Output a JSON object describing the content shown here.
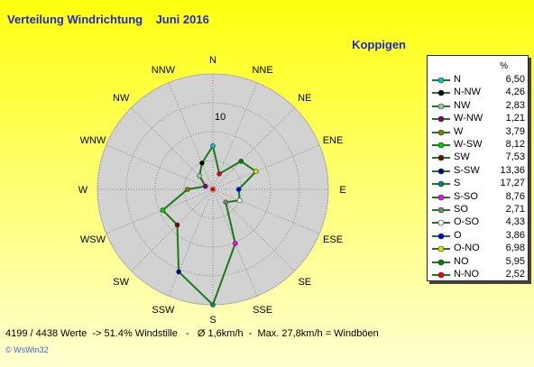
{
  "title": "Verteilung Windrichtung",
  "period": "Juni 2016",
  "station": "Koppigen",
  "legend_header": "%",
  "footer": "4199 / 4438 Werte  -> 51.4% Windstille   -   Ø 1,6km/h  -  Max. 27,8km/h = Windböen",
  "logo": "© WsWin32",
  "chart_data": {
    "type": "radar",
    "axis_labels": [
      "N",
      "NNE",
      "NE",
      "ENE",
      "E",
      "ESE",
      "SE",
      "SSE",
      "S",
      "SSW",
      "SW",
      "WSW",
      "W",
      "WNW",
      "NW",
      "NNW"
    ],
    "r_ticks": [
      10
    ],
    "r_max": 17.27,
    "grid": true,
    "legend_position": "right",
    "line_color": "#1a7a1a",
    "series": [
      {
        "label": "N",
        "value": "6,50",
        "num": 6.5,
        "color": "#00c8c8"
      },
      {
        "label": "N-NW",
        "value": "4,26",
        "num": 4.26,
        "color": "#000000"
      },
      {
        "label": "NW",
        "value": "2,83",
        "num": 2.83,
        "color": "#9ccc9c"
      },
      {
        "label": "W-NW",
        "value": "1,21",
        "num": 1.21,
        "color": "#800080"
      },
      {
        "label": "W",
        "value": "3,79",
        "num": 3.79,
        "color": "#808000"
      },
      {
        "label": "W-SW",
        "value": "8,12",
        "num": 8.12,
        "color": "#00d000"
      },
      {
        "label": "SW",
        "value": "7,53",
        "num": 7.53,
        "color": "#800000"
      },
      {
        "label": "S-SW",
        "value": "13,36",
        "num": 13.36,
        "color": "#000080"
      },
      {
        "label": "S",
        "value": "17,27",
        "num": 17.27,
        "color": "#008080"
      },
      {
        "label": "S-SO",
        "value": "8,76",
        "num": 8.76,
        "color": "#ff00ff"
      },
      {
        "label": "SO",
        "value": "2,71",
        "num": 2.71,
        "color": "#808080"
      },
      {
        "label": "O-SO",
        "value": "4,33",
        "num": 4.33,
        "color": "#ffffff"
      },
      {
        "label": "O",
        "value": "3,86",
        "num": 3.86,
        "color": "#0000ff"
      },
      {
        "label": "O-NO",
        "value": "6,98",
        "num": 6.98,
        "color": "#e0e000"
      },
      {
        "label": "NO",
        "value": "5,95",
        "num": 5.95,
        "color": "#008000"
      },
      {
        "label": "N-NO",
        "value": "2,52",
        "num": 2.52,
        "color": "#ff0000"
      }
    ],
    "polygon_values": {
      "N": 6.5,
      "NNE": 2.52,
      "NE": 5.95,
      "ENE": 6.98,
      "E": 3.86,
      "ESE": 4.33,
      "SE": 2.71,
      "SSE": 8.76,
      "S": 17.27,
      "SSW": 13.36,
      "SW": 7.53,
      "WSW": 8.12,
      "W": 3.79,
      "WNW": 1.21,
      "NW": 2.83,
      "NNW": 4.26
    }
  }
}
